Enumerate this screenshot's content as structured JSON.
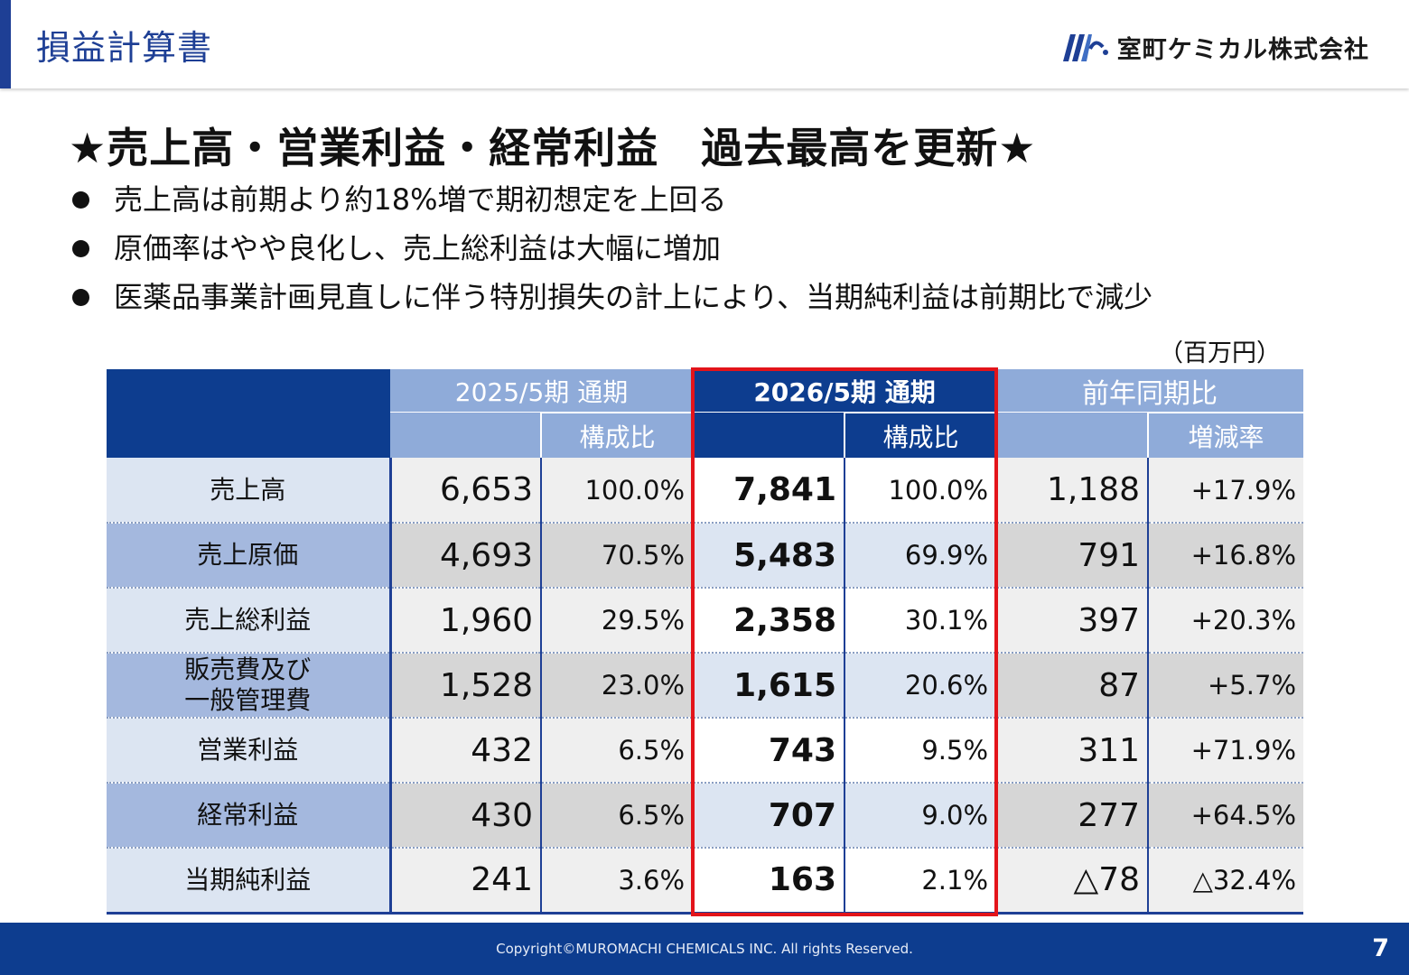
{
  "header": {
    "title": "損益計算書",
    "company": "室町ケミカル株式会社",
    "logo_color": "#1e3f95"
  },
  "headline": "★売上高・営業利益・経常利益　過去最高を更新★",
  "bullets": [
    "売上高は前期より約18%増で期初想定を上回る",
    "原価率はやや良化し、売上総利益は大幅に増加",
    "医薬品事業計画見直しに伴う特別損失の計上により、当期純利益は前期比で減少"
  ],
  "unit": "（百万円）",
  "table": {
    "headers": {
      "prev_period": "2025/5期 通期",
      "cur_period": "2026/5期 通期",
      "yoy": "前年同期比",
      "ratio": "構成比",
      "ratio_cur": "構成比",
      "change_rate": "増減率"
    },
    "rows": [
      {
        "label": "売上高",
        "prev": "6,653",
        "prev_ratio": "100.0%",
        "cur": "7,841",
        "cur_ratio": "100.0%",
        "diff": "1,188",
        "rate": "+17.9%"
      },
      {
        "label": "売上原価",
        "prev": "4,693",
        "prev_ratio": "70.5%",
        "cur": "5,483",
        "cur_ratio": "69.9%",
        "diff": "791",
        "rate": "+16.8%"
      },
      {
        "label": "売上総利益",
        "prev": "1,960",
        "prev_ratio": "29.5%",
        "cur": "2,358",
        "cur_ratio": "30.1%",
        "diff": "397",
        "rate": "+20.3%"
      },
      {
        "label": "販売費及び\n一般管理費",
        "prev": "1,528",
        "prev_ratio": "23.0%",
        "cur": "1,615",
        "cur_ratio": "20.6%",
        "diff": "87",
        "rate": "+5.7%"
      },
      {
        "label": "営業利益",
        "prev": "432",
        "prev_ratio": "6.5%",
        "cur": "743",
        "cur_ratio": "9.5%",
        "diff": "311",
        "rate": "+71.9%"
      },
      {
        "label": "経常利益",
        "prev": "430",
        "prev_ratio": "6.5%",
        "cur": "707",
        "cur_ratio": "9.0%",
        "diff": "277",
        "rate": "+64.5%"
      },
      {
        "label": "当期純利益",
        "prev": "241",
        "prev_ratio": "3.6%",
        "cur": "163",
        "cur_ratio": "2.1%",
        "diff": "△78",
        "rate": "△32.4%"
      }
    ]
  },
  "footer": {
    "copyright": "Copyright©MUROMACHI CHEMICALS INC. All rights Reserved.",
    "page_number": "7"
  },
  "colors": {
    "primary": "#0d3d8f",
    "light_blue": "#8fabd9",
    "highlight": "#e3141a"
  }
}
